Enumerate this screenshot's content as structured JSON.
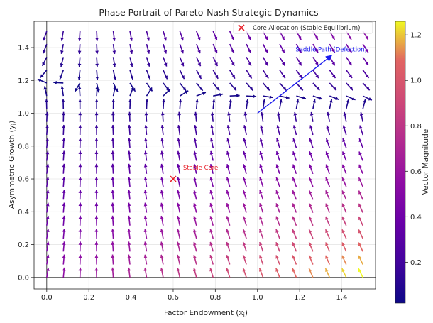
{
  "chart_data": {
    "type": "quiver",
    "title": "Phase Portrait of Pareto-Nash Strategic Dynamics",
    "xlabel": "Factor Endowment (x",
    "xlabel_sub": "i",
    "xlabel_tail": ")",
    "ylabel": "Asymmetric Growth (y",
    "ylabel_sub": "i",
    "ylabel_tail": ")",
    "xlim": [
      -0.06,
      1.56
    ],
    "ylim": [
      -0.07,
      1.56
    ],
    "xticks": [
      "0.0",
      "0.2",
      "0.4",
      "0.6",
      "0.8",
      "1.0",
      "1.2",
      "1.4"
    ],
    "yticks": [
      "0.0",
      "0.2",
      "0.4",
      "0.6",
      "0.8",
      "1.0",
      "1.2",
      "1.4"
    ],
    "grid": true,
    "legend_position": "top-right",
    "legend": [
      {
        "label": "Core Allocation (Stable Equilibrium)",
        "marker": "x",
        "color": "#e8212a"
      }
    ],
    "vector_field": {
      "x_range": [
        0,
        1.5
      ],
      "y_range": [
        0,
        1.5
      ],
      "n": 20,
      "dx": "0.05*(0.2 - x)*(1 - y)",
      "dy": "0.05*(1 - y)*(1 + x) + 0.01",
      "colormap": "plasma",
      "colorbar_label": "Vector Magnitude",
      "colorbar_ticks": [
        "0.2",
        "0.4",
        "0.6",
        "0.8",
        "1.0",
        "1.2"
      ],
      "colorbar_range": [
        0.02,
        1.26
      ]
    },
    "points": [
      {
        "x": 0.6,
        "y": 0.6,
        "label": "Stable Core",
        "marker": "x",
        "color": "#e8212a"
      }
    ],
    "arrows": [
      {
        "from": [
          1.0,
          1.0
        ],
        "to": [
          1.35,
          1.35
        ],
        "label": "Saddle Path (Defection)",
        "color": "#1a1aee"
      }
    ]
  }
}
